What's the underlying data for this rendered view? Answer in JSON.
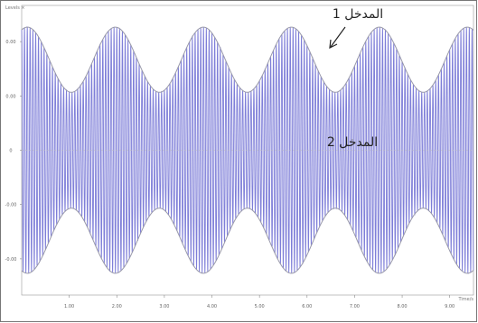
{
  "chart_data": {
    "type": "line",
    "title": "",
    "xlabel": "",
    "ylabel": "",
    "corner_labels": {
      "y_axis_tag": "Levels ×",
      "x_axis_tag": "Time/s"
    },
    "ylim": [
      -2,
      2
    ],
    "xlim": [
      0,
      9.5
    ],
    "y_ticks": [
      {
        "value": 1.5,
        "label": "0.00"
      },
      {
        "value": 0.75,
        "label": "0.00"
      },
      {
        "value": 0,
        "label": "0"
      },
      {
        "value": -0.75,
        "label": "-0.00"
      },
      {
        "value": -1.5,
        "label": "-0.00"
      }
    ],
    "x_ticks": [
      {
        "value": 1,
        "label": "1.00"
      },
      {
        "value": 2,
        "label": "2.00"
      },
      {
        "value": 3,
        "label": "3.00"
      },
      {
        "value": 4,
        "label": "4.00"
      },
      {
        "value": 5,
        "label": "5.00"
      },
      {
        "value": 6,
        "label": "6.00"
      },
      {
        "value": 7,
        "label": "7.00"
      },
      {
        "value": 8,
        "label": "8.00"
      },
      {
        "value": 9,
        "label": "9.00"
      }
    ],
    "series": [
      {
        "carrier_cycles_per_unit": 17,
        "envelope_mean": 1.25,
        "envelope_amplitude": 0.45,
        "envelope_period": 1.85,
        "envelope_peak_at": 0.12,
        "color": "#7e7ed8"
      }
    ],
    "envelope_color": "#9999aa",
    "grid": false,
    "legend": "none",
    "annotations": [
      {
        "id": "input1",
        "text": "المدخل 1",
        "has_arrow": true
      },
      {
        "id": "input2",
        "text": "المدخل 2",
        "has_arrow": false
      }
    ]
  }
}
